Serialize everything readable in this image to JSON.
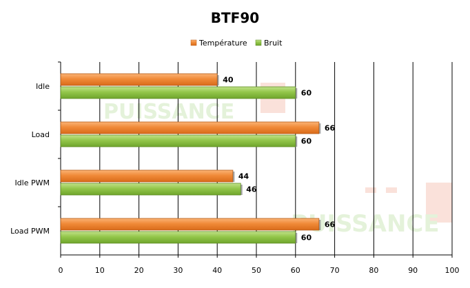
{
  "chart_data": {
    "type": "bar",
    "orientation": "horizontal",
    "title": "BTF90",
    "categories": [
      "Idle",
      "Load",
      "Idle PWM",
      "Load PWM"
    ],
    "series": [
      {
        "name": "Température",
        "values": [
          40,
          66,
          44,
          66
        ],
        "color": "#f08c3c"
      },
      {
        "name": "Bruit",
        "values": [
          60,
          60,
          46,
          60
        ],
        "color": "#96c84b"
      }
    ],
    "xlim": [
      0,
      100
    ],
    "x_ticks": [
      "0",
      "10",
      "20",
      "30",
      "40",
      "50",
      "60",
      "70",
      "80",
      "90",
      "100"
    ],
    "grid": "vertical",
    "legend": "top"
  },
  "watermark": {
    "text": "PUISSANCE",
    "suffix": "PC",
    "color": "#c8e6b4",
    "accent": "#f5b8a8"
  }
}
